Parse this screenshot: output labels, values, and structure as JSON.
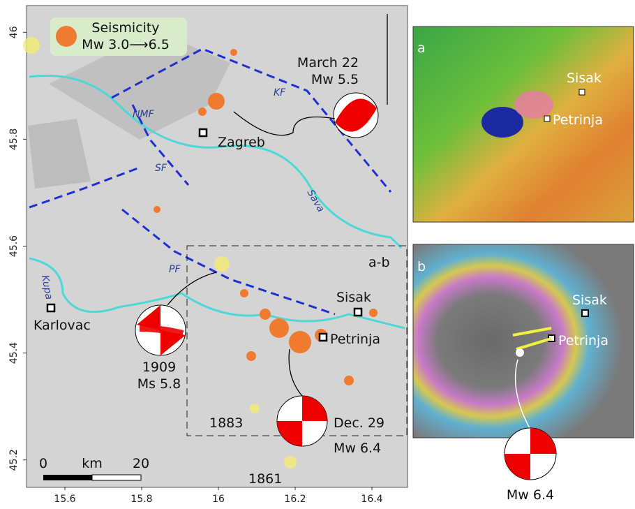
{
  "map": {
    "xlim": [
      15.5,
      16.5
    ],
    "ylim": [
      45.15,
      46.05
    ],
    "xticks": [
      15.6,
      15.8,
      16,
      16.2,
      16.4
    ],
    "yticks": [
      46,
      45.8,
      45.6,
      45.4,
      45.2
    ],
    "legend": {
      "title": "Seismicity",
      "range": "Mw 3.0⟶6.5"
    },
    "labels": {
      "march_date": "March 22",
      "march_mag": "Mw 5.5",
      "zagreb": "Zagreb",
      "kf": "KF",
      "nmf": "NMF",
      "sf": "SF",
      "pf": "PF",
      "sava": "Sava",
      "kupa": "Kupa",
      "karlovac": "Karlovac",
      "sisak": "Sisak",
      "petrinja": "Petrinja",
      "year_1909": "1909",
      "mag_1909": "Ms 5.8",
      "year_1883": "1883",
      "year_1861": "1861",
      "dec_date": "Dec. 29",
      "dec_mag": "Mw 6.4",
      "box": "a-b",
      "scale_0": "0",
      "scale_unit": "km",
      "scale_20": "20"
    }
  },
  "panel_a": {
    "letter": "a",
    "sisak": "Sisak",
    "petrinja": "Petrinja"
  },
  "panel_b": {
    "letter": "b",
    "sisak": "Sisak",
    "petrinja": "Petrinja",
    "magnitude": "Mw 6.4"
  }
}
